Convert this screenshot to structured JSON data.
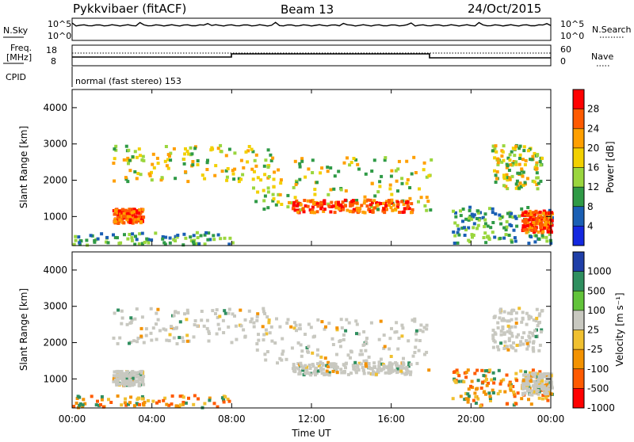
{
  "header": {
    "radar": "Pykkvibaer (fitACF)",
    "beam": "Beam 13",
    "date": "24/Oct/2015"
  },
  "status_panels": {
    "nsky_label": "N.Sky",
    "nsky_ticks": [
      "10^5",
      "10^0"
    ],
    "nsearch_label": "N.Search",
    "nsearch_ticks": [
      "10^5",
      "10^0"
    ],
    "freq_label": "Freq.",
    "freq_unit": "[MHz]",
    "freq_ticks": [
      "18",
      "8"
    ],
    "nave_label": "Nave",
    "nave_ticks": [
      "60",
      "0"
    ],
    "cpid_label": "CPID",
    "cpid_text": "normal (fast stereo) 153"
  },
  "chart_data": [
    {
      "type": "heatmap",
      "name": "power",
      "ylabel": "Slant Range [km]",
      "xlabel": "",
      "ylim": [
        200,
        4500
      ],
      "yticks": [
        "4000",
        "3000",
        "2000",
        "1000"
      ],
      "colorbar_label": "Power [dB]",
      "colorbar_ticks": [
        "28",
        "24",
        "20",
        "16",
        "12",
        "8",
        "4"
      ],
      "colors": [
        "#ff0000",
        "#ff5a00",
        "#ff9f00",
        "#f2d000",
        "#9ad63e",
        "#2f9a46",
        "#1a5fb4",
        "#1428e0"
      ]
    },
    {
      "type": "heatmap",
      "name": "velocity",
      "ylabel": "Slant Range [km]",
      "xlabel": "Time UT",
      "ylim": [
        200,
        4500
      ],
      "yticks": [
        "4000",
        "3000",
        "2000",
        "1000"
      ],
      "xticks": [
        "00:00",
        "04:00",
        "08:00",
        "12:00",
        "16:00",
        "20:00",
        "00:00"
      ],
      "colorbar_label": "Velocity [m s⁻¹]",
      "colorbar_ticks": [
        "1000",
        "500",
        "100",
        "25",
        "-25",
        "-100",
        "-500",
        "-1000"
      ],
      "colors": [
        "#1f3fa8",
        "#2f8f5f",
        "#62c33a",
        "#c8c8c0",
        "#f0c030",
        "#f39200",
        "#ff5a00",
        "#ff0000"
      ]
    }
  ]
}
